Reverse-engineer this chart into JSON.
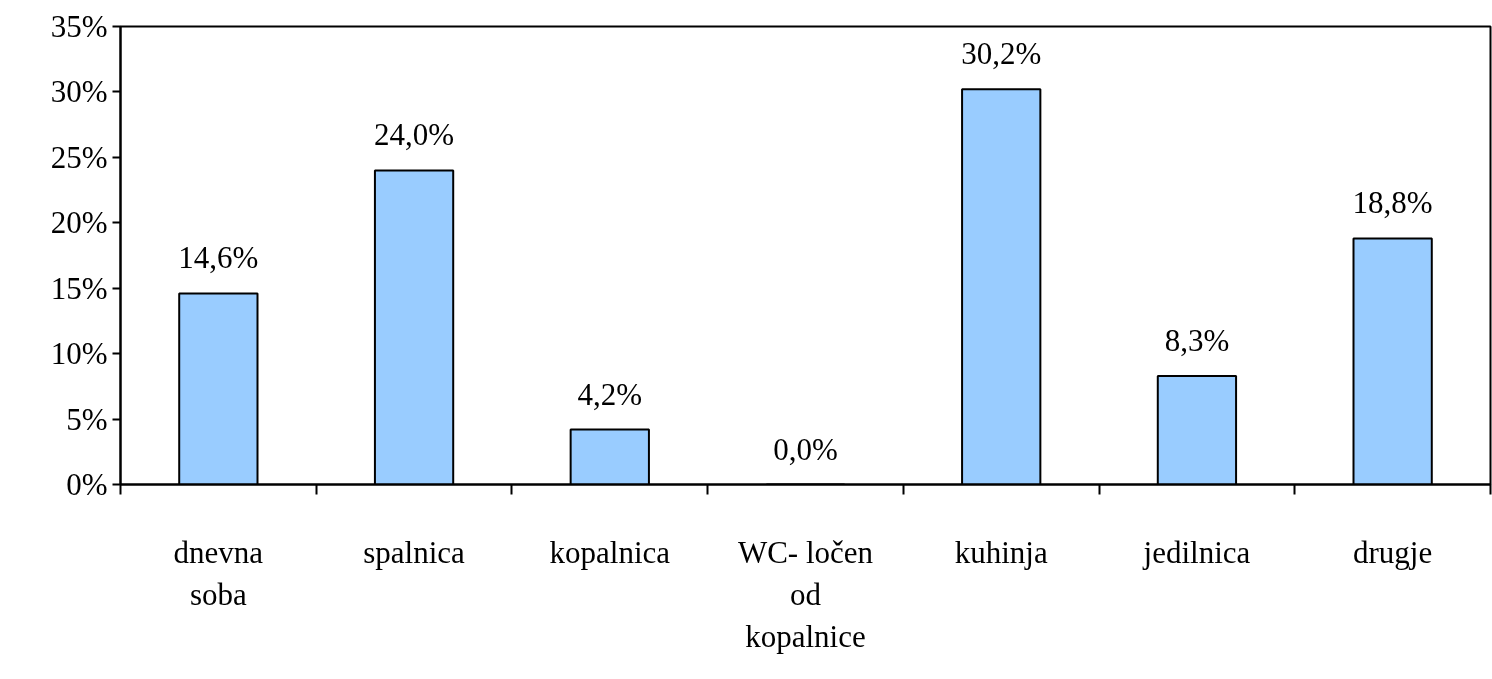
{
  "chart_data": {
    "type": "bar",
    "categories": [
      "dnevna soba",
      "spalnica",
      "kopalnica",
      "WC- ločen od kopalnice",
      "kuhinja",
      "jedilnica",
      "drugje"
    ],
    "values": [
      14.6,
      24.0,
      4.2,
      0.0,
      30.2,
      8.3,
      18.8
    ],
    "value_labels": [
      "14,6%",
      "24,0%",
      "4,2%",
      "0,0%",
      "30,2%",
      "8,3%",
      "18,8%"
    ],
    "color": "#99ccff",
    "ylim": [
      0,
      35
    ],
    "yticks": [
      {
        "value": 0,
        "label": "0%"
      },
      {
        "value": 5,
        "label": "5%"
      },
      {
        "value": 10,
        "label": "10%"
      },
      {
        "value": 15,
        "label": "15%"
      },
      {
        "value": 20,
        "label": "20%"
      },
      {
        "value": 25,
        "label": "25%"
      },
      {
        "value": 30,
        "label": "30%"
      },
      {
        "value": 35,
        "label": "35%"
      }
    ],
    "grid": false
  }
}
